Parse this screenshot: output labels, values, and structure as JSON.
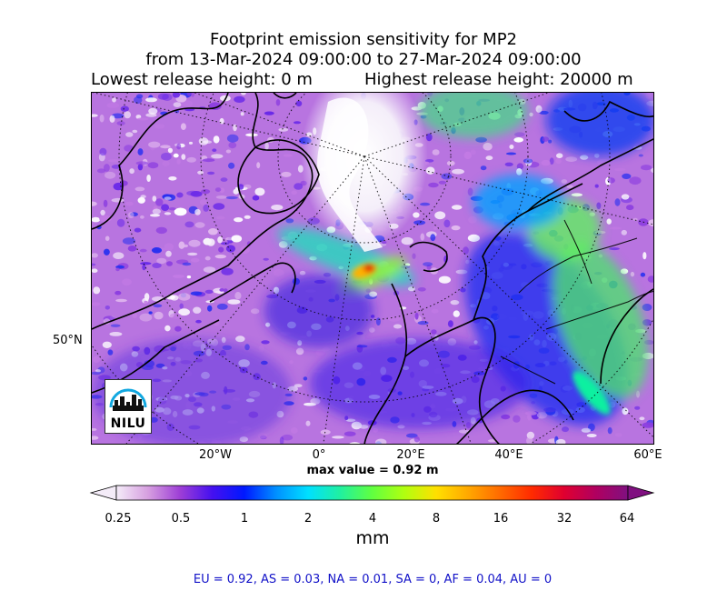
{
  "title": {
    "line1": "Footprint emission sensitivity for MP2",
    "line2": "from 13-Mar-2024 09:00:00 to 27-Mar-2024 09:00:00",
    "lowest": "Lowest release height: 0 m",
    "highest": "Highest release height: 20000 m"
  },
  "axes": {
    "lon_ticks": [
      "20°W",
      "0°",
      "20°E",
      "40°E",
      "60°E"
    ],
    "lat_ticks": [
      "50°N"
    ]
  },
  "max_value": "max value = 0.92 m",
  "colorbar": {
    "ticks": [
      "0.25",
      "0.5",
      "1",
      "2",
      "4",
      "8",
      "16",
      "32",
      "64"
    ],
    "unit": "mm",
    "colors": [
      "#f4ecf8",
      "#d69ee0",
      "#9d3ed6",
      "#4510f0",
      "#0018ff",
      "#0090ff",
      "#00e0ff",
      "#20f0a0",
      "#60ff40",
      "#b0ff10",
      "#ffe000",
      "#ffa800",
      "#ff6a00",
      "#ff2a00",
      "#e00030",
      "#b00060",
      "#801080"
    ]
  },
  "stats": "EU = 0.92,  AS = 0.03,  NA = 0.01,  SA = 0,  AF = 0.04,  AU = 0",
  "logo": {
    "text": "NILU",
    "color": "#12a8e0"
  }
}
